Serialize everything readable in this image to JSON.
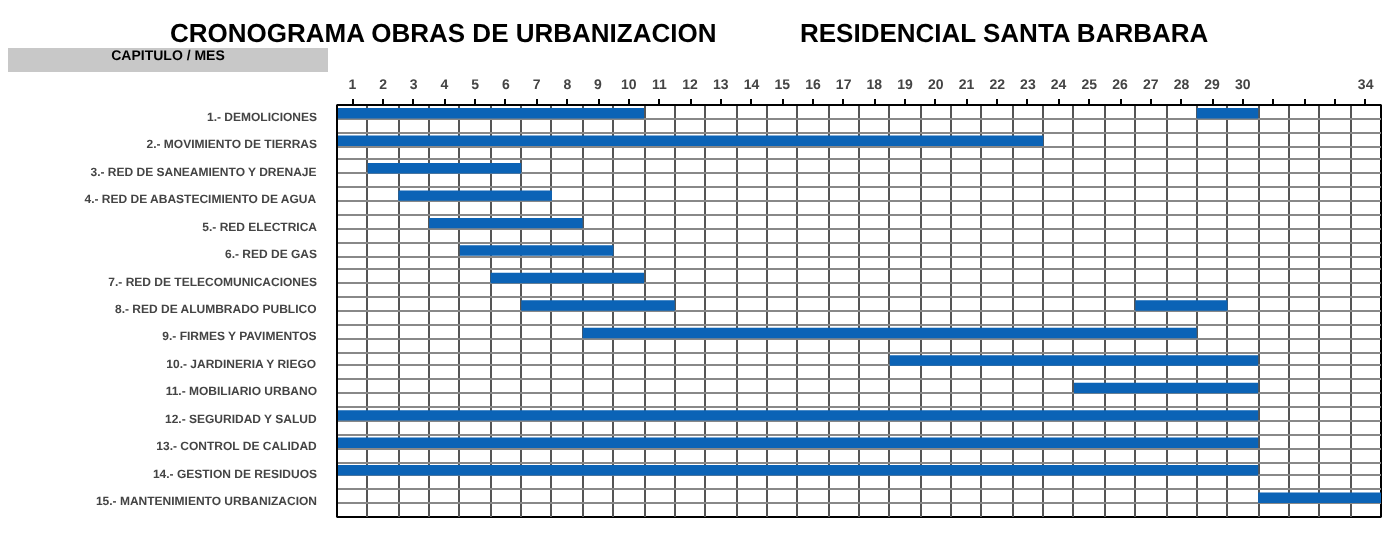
{
  "chart_data": {
    "type": "bar",
    "orientation": "horizontal",
    "title": "CRONOGRAMA OBRAS DE URBANIZACION",
    "subtitle": "RESIDENCIAL SANTA BARBARA",
    "annotations": [
      "CAPITULO / MES"
    ],
    "categories": [
      "1.- DEMOLICIONES",
      "2.- MOVIMIENTO DE TIERRAS",
      "3.- RED DE SANEAMIENTO Y DRENAJE",
      "4.- RED DE ABASTECIMIENTO DE AGUA",
      "5.- RED ELECTRICA",
      "6.- RED DE GAS",
      "7.- RED DE TELECOMUNICACIONES",
      "8.- RED DE ALUMBRADO PUBLICO",
      "9.- FIRMES Y PAVIMENTOS",
      "10.- JARDINERIA Y RIEGO",
      "11.- MOBILIARIO URBANO",
      "12.- SEGURIDAD Y SALUD",
      "13.- CONTROL DE CALIDAD",
      "14.- GESTION DE RESIDUOS",
      "15.- MANTENIMIENTO URBANIZACION"
    ],
    "series": [
      {
        "color": "#0b63b6",
        "base": [
          0.5,
          0.5,
          1.5,
          2.5,
          3.5,
          4.5,
          5.5,
          6.5,
          8.5,
          18.5,
          24.5,
          0.5,
          0.5,
          0.5,
          30.5
        ],
        "values": [
          10,
          23,
          5,
          5,
          5,
          5,
          5,
          5,
          20,
          12,
          6,
          30,
          30,
          30,
          4
        ]
      },
      {
        "color": "#0b63b6",
        "base": [
          28.5,
          null,
          null,
          null,
          null,
          null,
          null,
          26.5,
          null,
          null,
          null,
          null,
          null,
          null,
          null
        ],
        "values": [
          2,
          null,
          null,
          null,
          null,
          null,
          null,
          3,
          null,
          null,
          null,
          null,
          null,
          null,
          null
        ]
      }
    ],
    "xlim": [
      0.5,
      34.5
    ],
    "xticks": [
      1,
      2,
      3,
      4,
      5,
      6,
      7,
      8,
      9,
      10,
      11,
      12,
      13,
      14,
      15,
      16,
      17,
      18,
      19,
      20,
      21,
      22,
      23,
      24,
      25,
      26,
      27,
      28,
      29,
      30,
      {
        "value": 31,
        "label": null
      },
      {
        "value": 32,
        "label": null
      },
      {
        "value": 33,
        "label": null
      },
      34
    ],
    "grid": true
  }
}
